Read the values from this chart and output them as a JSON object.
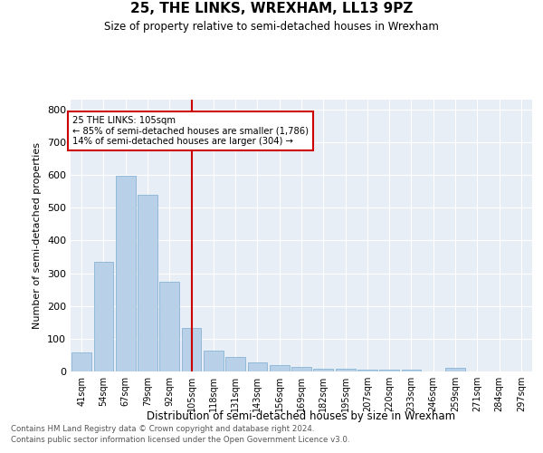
{
  "title": "25, THE LINKS, WREXHAM, LL13 9PZ",
  "subtitle": "Size of property relative to semi-detached houses in Wrexham",
  "xlabel": "Distribution of semi-detached houses by size in Wrexham",
  "ylabel": "Number of semi-detached properties",
  "footnote1": "Contains HM Land Registry data © Crown copyright and database right 2024.",
  "footnote2": "Contains public sector information licensed under the Open Government Licence v3.0.",
  "property_label": "25 THE LINKS: 105sqm",
  "annotation_line1": "← 85% of semi-detached houses are smaller (1,786)",
  "annotation_line2": "14% of semi-detached houses are larger (304) →",
  "categories": [
    "41sqm",
    "54sqm",
    "67sqm",
    "79sqm",
    "92sqm",
    "105sqm",
    "118sqm",
    "131sqm",
    "143sqm",
    "156sqm",
    "169sqm",
    "182sqm",
    "195sqm",
    "207sqm",
    "220sqm",
    "233sqm",
    "246sqm",
    "259sqm",
    "271sqm",
    "284sqm",
    "297sqm"
  ],
  "values": [
    57,
    335,
    597,
    540,
    275,
    133,
    63,
    44,
    27,
    18,
    13,
    8,
    7,
    6,
    6,
    6,
    0,
    10,
    0,
    0,
    0
  ],
  "bar_color": "#b8d0e8",
  "bar_edge_color": "#7aacd0",
  "vline_x_idx": 5,
  "vline_color": "#cc0000",
  "annotation_box_color": "#cc0000",
  "bg_color": "#e8eef5",
  "ylim": [
    0,
    830
  ],
  "yticks": [
    0,
    100,
    200,
    300,
    400,
    500,
    600,
    700,
    800
  ]
}
